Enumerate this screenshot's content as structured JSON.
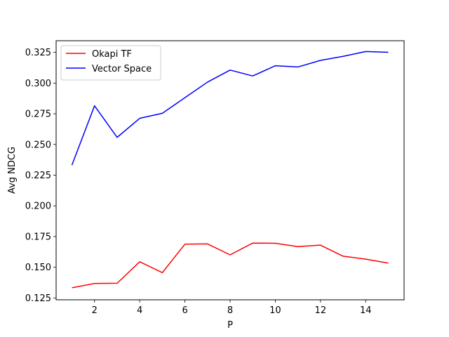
{
  "chart_data": {
    "type": "line",
    "xlabel": "P",
    "ylabel": "Avg NDCG",
    "x": [
      1,
      2,
      3,
      4,
      5,
      6,
      7,
      8,
      9,
      10,
      11,
      12,
      13,
      14,
      15
    ],
    "xlim": [
      0.3,
      15.7
    ],
    "ylim": [
      0.1235,
      0.3345
    ],
    "xticks": [
      2,
      4,
      6,
      8,
      10,
      12,
      14
    ],
    "xtick_labels": [
      "2",
      "4",
      "6",
      "8",
      "10",
      "12",
      "14"
    ],
    "yticks": [
      0.125,
      0.15,
      0.175,
      0.2,
      0.225,
      0.25,
      0.275,
      0.3,
      0.325
    ],
    "ytick_labels": [
      "0.125",
      "0.150",
      "0.175",
      "0.200",
      "0.225",
      "0.250",
      "0.275",
      "0.300",
      "0.325"
    ],
    "grid": false,
    "legend_position": "top-left",
    "series": [
      {
        "name": "Okapi TF",
        "color": "#ff0000",
        "values": [
          0.1333,
          0.1368,
          0.137,
          0.1545,
          0.1456,
          0.1688,
          0.169,
          0.1601,
          0.1697,
          0.1695,
          0.1668,
          0.168,
          0.159,
          0.1566,
          0.1534
        ]
      },
      {
        "name": "Vector Space",
        "color": "#0000ff",
        "values": [
          0.2332,
          0.2815,
          0.2558,
          0.2713,
          0.2754,
          0.2881,
          0.3008,
          0.3106,
          0.3058,
          0.3141,
          0.3131,
          0.3185,
          0.3218,
          0.3257,
          0.3251
        ]
      }
    ]
  }
}
